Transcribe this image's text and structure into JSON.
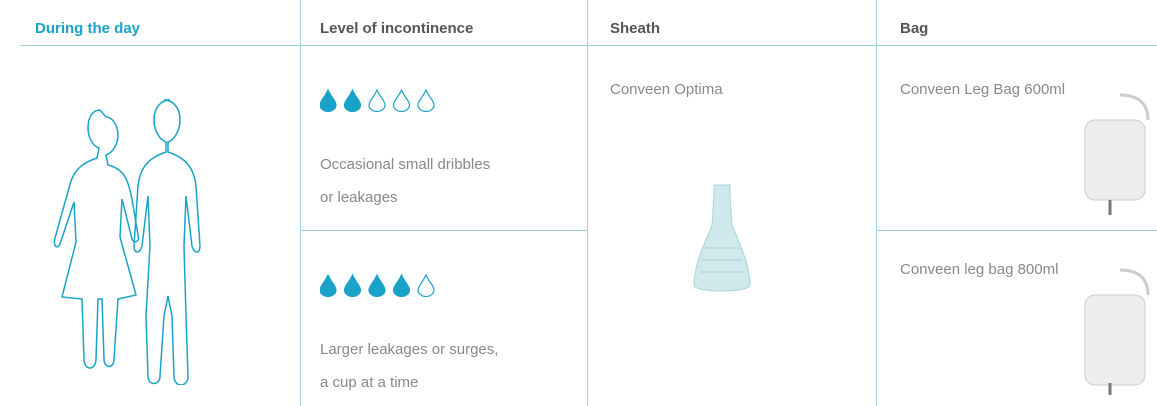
{
  "header": {
    "title": "During the day",
    "columns": [
      "Level of incontinence",
      "Sheath",
      "Bag"
    ]
  },
  "levels": [
    {
      "filled": 2,
      "of": 5,
      "text": "Occasional small dribbles or leakages"
    },
    {
      "filled": 4,
      "of": 5,
      "text": "Larger leakages or surges, a cup at a time"
    }
  ],
  "sheath": "Conveen Optima",
  "bags": [
    "Conveen Leg Bag 600ml",
    "Conveen leg bag 800ml"
  ]
}
